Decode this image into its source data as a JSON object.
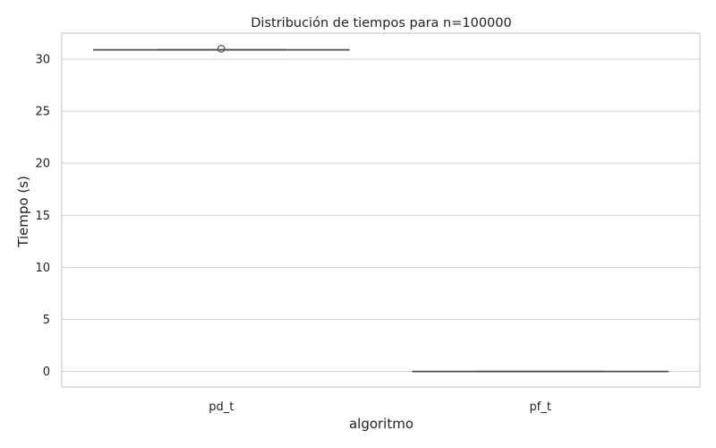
{
  "chart_data": {
    "type": "boxplot",
    "title": "Distribución de tiempos para n=100000",
    "xlabel": "algoritmo",
    "ylabel": "Tiempo (s)",
    "categories": [
      "pd_t",
      "pf_t"
    ],
    "ylim": [
      -1.5,
      32.5
    ],
    "yticks": [
      0,
      5,
      10,
      15,
      20,
      25,
      30
    ],
    "grid": true,
    "boxes": [
      {
        "category": "pd_t",
        "whisker_low": 30.9,
        "q1": 30.9,
        "median": 30.9,
        "q3": 30.9,
        "whisker_high": 30.9,
        "outliers": [
          31.0
        ]
      },
      {
        "category": "pf_t",
        "whisker_low": 0.0,
        "q1": 0.0,
        "median": 0.0,
        "q3": 0.0,
        "whisker_high": 0.0,
        "outliers": []
      }
    ],
    "colors": {
      "grid": "#d5d5d5",
      "frame": "#cccccc",
      "box_line": "#4d4d4d",
      "text": "#222222"
    }
  }
}
